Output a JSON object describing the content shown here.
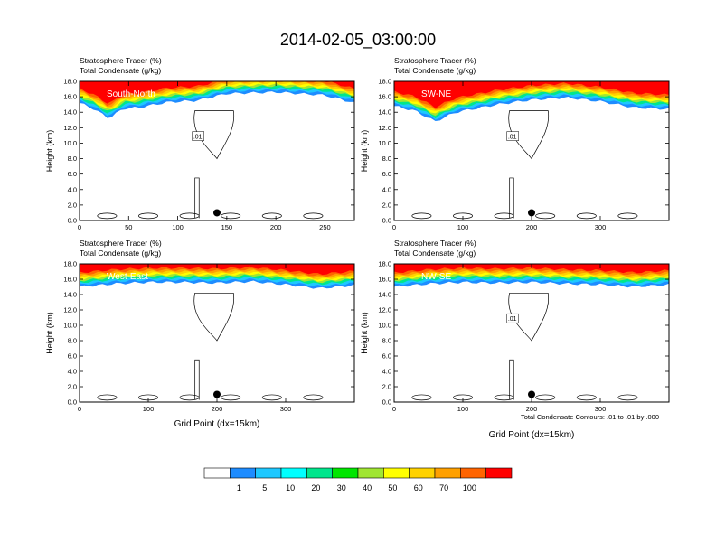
{
  "figure": {
    "title": "2014-02-05_03:00:00",
    "left_title_1": "Stratosphere Tracer",
    "left_unit_1": "(%)",
    "left_title_2": "Total Condensate",
    "left_unit_2": "(g/kg)",
    "xlabel": "Grid Point (dx=15km)",
    "ylabel": "Height (km)",
    "contour_note": "Total Condensate Contours: .01 to .01 by .000"
  },
  "colorbar": {
    "levels": [
      "1",
      "5",
      "10",
      "20",
      "30",
      "40",
      "50",
      "60",
      "70",
      "100"
    ],
    "colors": [
      "#ffffff",
      "#1e8cff",
      "#1ec8ff",
      "#00ffff",
      "#00e68c",
      "#00e600",
      "#a0e632",
      "#ffff00",
      "#ffd200",
      "#ffa000",
      "#ff6400",
      "#ff0000"
    ]
  },
  "chart_data": [
    {
      "type": "heatmap",
      "name": "South-North",
      "title": "Stratosphere Tracer (%) / Total Condensate (g/kg)",
      "xlim": [
        0,
        280
      ],
      "xticks": [
        0,
        50,
        100,
        150,
        200,
        250
      ],
      "ylim": [
        0,
        18
      ],
      "yticks": [
        "0.0",
        "2.0",
        "4.0",
        "6.0",
        "8.0",
        "10.0",
        "12.0",
        "14.0",
        "16.0",
        "18.0"
      ],
      "tracer_base_km": [
        [
          0,
          15.2
        ],
        [
          15,
          14.4
        ],
        [
          30,
          13.2
        ],
        [
          45,
          14.5
        ],
        [
          60,
          14.6
        ],
        [
          90,
          15.3
        ],
        [
          120,
          15.5
        ],
        [
          150,
          16.4
        ],
        [
          200,
          16.6
        ],
        [
          250,
          16.2
        ],
        [
          280,
          15.2
        ]
      ],
      "contour_label": ".01",
      "marker_x": 140,
      "marker_y": 1.0
    },
    {
      "type": "heatmap",
      "name": "SW-NE",
      "title": "Stratosphere Tracer (%) / Total Condensate (g/kg)",
      "xlim": [
        0,
        400
      ],
      "xticks": [
        0,
        100,
        200,
        300
      ],
      "ylim": [
        0,
        18
      ],
      "yticks": [
        "0.0",
        "2.0",
        "4.0",
        "6.0",
        "8.0",
        "10.0",
        "12.0",
        "14.0",
        "16.0",
        "18.0"
      ],
      "tracer_base_km": [
        [
          0,
          14.8
        ],
        [
          30,
          14.2
        ],
        [
          60,
          12.8
        ],
        [
          90,
          14.0
        ],
        [
          150,
          15.0
        ],
        [
          200,
          15.6
        ],
        [
          250,
          15.9
        ],
        [
          300,
          15.4
        ],
        [
          350,
          14.6
        ],
        [
          400,
          14.4
        ]
      ],
      "contour_label": ".01",
      "marker_x": 200,
      "marker_y": 1.0
    },
    {
      "type": "heatmap",
      "name": "West-East",
      "title": "Stratosphere Tracer (%) / Total Condensate (g/kg)",
      "xlim": [
        0,
        400
      ],
      "xticks": [
        0,
        100,
        200,
        300
      ],
      "ylim": [
        0,
        18
      ],
      "yticks": [
        "0.0",
        "2.0",
        "4.0",
        "6.0",
        "8.0",
        "10.0",
        "12.0",
        "14.0",
        "16.0",
        "18.0"
      ],
      "tracer_base_km": [
        [
          0,
          15.0
        ],
        [
          50,
          15.4
        ],
        [
          100,
          15.6
        ],
        [
          150,
          15.6
        ],
        [
          200,
          15.5
        ],
        [
          250,
          15.7
        ],
        [
          300,
          15.3
        ],
        [
          350,
          14.8
        ],
        [
          400,
          15.2
        ]
      ],
      "contour_label": "",
      "marker_x": 200,
      "marker_y": 1.0
    },
    {
      "type": "heatmap",
      "name": "NW-SE",
      "title": "Stratosphere Tracer (%) / Total Condensate (g/kg)",
      "xlim": [
        0,
        400
      ],
      "xticks": [
        0,
        100,
        200,
        300
      ],
      "ylim": [
        0,
        18
      ],
      "yticks": [
        "0.0",
        "2.0",
        "4.0",
        "6.0",
        "8.0",
        "10.0",
        "12.0",
        "14.0",
        "16.0",
        "18.0"
      ],
      "tracer_base_km": [
        [
          0,
          15.0
        ],
        [
          50,
          15.4
        ],
        [
          100,
          15.6
        ],
        [
          150,
          15.5
        ],
        [
          200,
          15.6
        ],
        [
          250,
          15.4
        ],
        [
          300,
          15.3
        ],
        [
          350,
          15.0
        ],
        [
          400,
          15.3
        ]
      ],
      "contour_label": ".01",
      "marker_x": 200,
      "marker_y": 1.0
    }
  ]
}
